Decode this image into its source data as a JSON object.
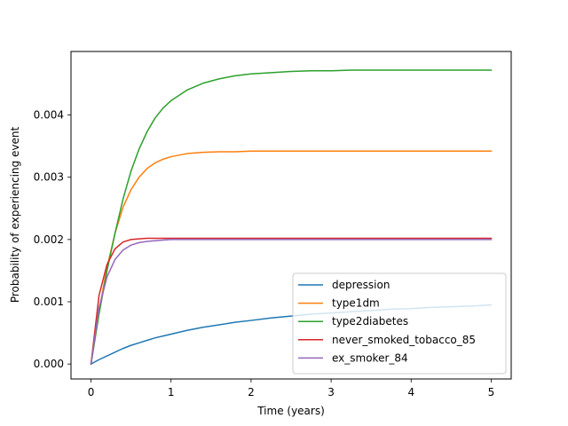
{
  "chart_data": {
    "type": "line",
    "title": "",
    "xlabel": "Time (years)",
    "ylabel": "Probability of experiencing event",
    "xlim": [
      -0.25,
      5.25
    ],
    "ylim": [
      -0.00024,
      0.00502
    ],
    "xticks": [
      0,
      1,
      2,
      3,
      4,
      5
    ],
    "xtick_labels": [
      "0",
      "1",
      "2",
      "3",
      "4",
      "5"
    ],
    "yticks": [
      0.0,
      0.001,
      0.002,
      0.003,
      0.004
    ],
    "ytick_labels": [
      "0.000",
      "0.001",
      "0.002",
      "0.003",
      "0.004"
    ],
    "grid": false,
    "legend_position": "lower-right",
    "x": [
      0,
      0.1,
      0.2,
      0.3,
      0.4,
      0.5,
      0.6,
      0.7,
      0.8,
      0.9,
      1.0,
      1.2,
      1.4,
      1.6,
      1.8,
      2.0,
      2.25,
      2.5,
      2.75,
      3.0,
      3.25,
      3.5,
      3.75,
      4.0,
      4.25,
      4.5,
      4.75,
      5.0
    ],
    "series": [
      {
        "name": "depression",
        "color": "#1f77b4",
        "values": [
          0,
          7e-05,
          0.00013,
          0.00019,
          0.00025,
          0.0003,
          0.00034,
          0.00038,
          0.00042,
          0.00045,
          0.00048,
          0.00054,
          0.00059,
          0.00063,
          0.00067,
          0.0007,
          0.00074,
          0.00077,
          0.0008,
          0.00082,
          0.00084,
          0.00086,
          0.00088,
          0.00089,
          0.00091,
          0.00092,
          0.00093,
          0.00095
        ]
      },
      {
        "name": "type1dm",
        "color": "#ff7f0e",
        "values": [
          0,
          0.00085,
          0.00155,
          0.0021,
          0.00252,
          0.0028,
          0.003,
          0.00314,
          0.00323,
          0.00329,
          0.00333,
          0.00338,
          0.0034,
          0.00341,
          0.00341,
          0.00342,
          0.00342,
          0.00342,
          0.00342,
          0.00342,
          0.00342,
          0.00342,
          0.00342,
          0.00342,
          0.00342,
          0.00342,
          0.00342,
          0.00342
        ]
      },
      {
        "name": "type2diabetes",
        "color": "#2ca02c",
        "values": [
          0,
          0.0008,
          0.0015,
          0.0021,
          0.00265,
          0.0031,
          0.00345,
          0.00373,
          0.00395,
          0.00411,
          0.00423,
          0.0044,
          0.00451,
          0.00458,
          0.00463,
          0.00466,
          0.00468,
          0.0047,
          0.00471,
          0.00471,
          0.00472,
          0.00472,
          0.00472,
          0.00472,
          0.00472,
          0.00472,
          0.00472,
          0.00472
        ]
      },
      {
        "name": "never_smoked_tobacco_85",
        "color": "#d62728",
        "values": [
          0,
          0.0011,
          0.0016,
          0.00185,
          0.00196,
          0.002,
          0.00201,
          0.00202,
          0.00202,
          0.00202,
          0.00202,
          0.00202,
          0.00202,
          0.00202,
          0.00202,
          0.00202,
          0.00202,
          0.00202,
          0.00202,
          0.00202,
          0.00202,
          0.00202,
          0.00202,
          0.00202,
          0.00202,
          0.00202,
          0.00202,
          0.00202
        ]
      },
      {
        "name": "ex_smoker_84",
        "color": "#9467bd",
        "values": [
          0,
          0.0009,
          0.0014,
          0.00168,
          0.00183,
          0.00191,
          0.00195,
          0.00197,
          0.00198,
          0.00199,
          0.002,
          0.002,
          0.002,
          0.002,
          0.002,
          0.002,
          0.002,
          0.002,
          0.002,
          0.002,
          0.002,
          0.002,
          0.002,
          0.002,
          0.002,
          0.002,
          0.002,
          0.002
        ]
      }
    ]
  }
}
